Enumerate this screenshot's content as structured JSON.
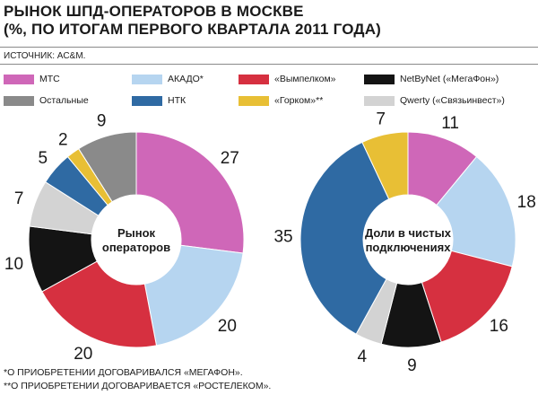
{
  "title": {
    "line1": "РЫНОК ШПД-ОПЕРАТОРОВ В МОСКВЕ",
    "line2": "(%, ПО ИТОГАМ ПЕРВОГО КВАРТАЛА 2011 ГОДА)"
  },
  "source": "ИСТОЧНИК: AC&M.",
  "legend": [
    {
      "label": "МТС",
      "color": "#cf67b8"
    },
    {
      "label": "АКАДО*",
      "color": "#b6d5f0"
    },
    {
      "label": "«Вымпелком»",
      "color": "#d63040"
    },
    {
      "label": "NetByNet («МегаФон»)",
      "color": "#141414"
    },
    {
      "label": "Остальные",
      "color": "#8a8a8a"
    },
    {
      "label": "НТК",
      "color": "#2f6aa3"
    },
    {
      "label": "«Горком»**",
      "color": "#e8bf35"
    },
    {
      "label": "Qwerty («Связьинвест»)",
      "color": "#d3d3d3"
    }
  ],
  "chart_data": [
    {
      "type": "pie",
      "center_label": [
        "Рынок",
        "операторов"
      ],
      "slices": [
        {
          "name": "МТС",
          "value": 27,
          "label": "27",
          "color": "#cf67b8"
        },
        {
          "name": "АКАДО*",
          "value": 20,
          "label": "20",
          "color": "#b6d5f0"
        },
        {
          "name": "«Вымпелком»",
          "value": 20,
          "label": "20",
          "color": "#d63040"
        },
        {
          "name": "NetByNet («МегаФон»)",
          "value": 10,
          "label": "10",
          "color": "#141414"
        },
        {
          "name": "Qwerty («Связьинвест»)",
          "value": 7,
          "label": "7",
          "color": "#d3d3d3"
        },
        {
          "name": "НТК",
          "value": 5,
          "label": "5",
          "color": "#2f6aa3"
        },
        {
          "name": "«Горком»**",
          "value": 2,
          "label": "2",
          "color": "#e8bf35"
        },
        {
          "name": "Остальные",
          "value": 9,
          "label": "9",
          "color": "#8a8a8a"
        }
      ]
    },
    {
      "type": "pie",
      "center_label": [
        "Доли в чистых",
        "подключениях"
      ],
      "slices": [
        {
          "name": "МТС",
          "value": 11,
          "label": "11",
          "color": "#cf67b8"
        },
        {
          "name": "АКАДО*",
          "value": 18,
          "label": "18",
          "color": "#b6d5f0"
        },
        {
          "name": "«Вымпелком»",
          "value": 16,
          "label": "16",
          "color": "#d63040"
        },
        {
          "name": "NetByNet («МегаФон»)",
          "value": 9,
          "label": "9",
          "color": "#141414"
        },
        {
          "name": "Qwerty («Связьинвест»)",
          "value": 4,
          "label": "4",
          "color": "#d3d3d3"
        },
        {
          "name": "НТК",
          "value": 35,
          "label": "35",
          "color": "#2f6aa3"
        },
        {
          "name": "«Горком»**",
          "value": 7,
          "label": "7",
          "color": "#e8bf35"
        }
      ]
    }
  ],
  "footnotes": [
    "*О ПРИОБРЕТЕНИИ ДОГОВАРИВАЛСЯ «МЕГАФОН».",
    "**О ПРИОБРЕТЕНИИ ДОГОВАРИВАЕТСЯ «РОСТЕЛЕКОМ»."
  ]
}
